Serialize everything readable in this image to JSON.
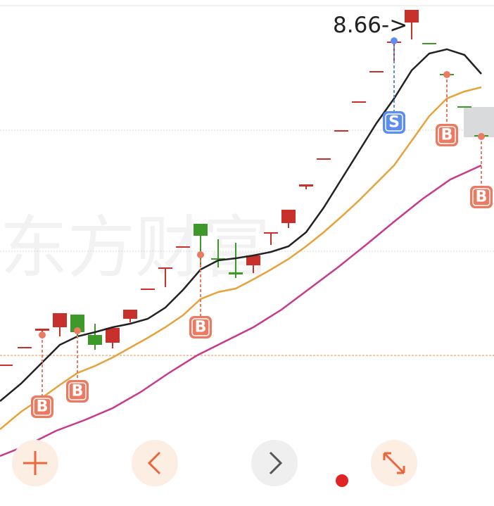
{
  "watermark": "东方财富",
  "price_annotation": "8.66->",
  "signals": [
    {
      "label": "B"
    },
    {
      "label": "B"
    },
    {
      "label": "B"
    },
    {
      "label": "S"
    },
    {
      "label": "B"
    },
    {
      "label": "B"
    }
  ]
}
